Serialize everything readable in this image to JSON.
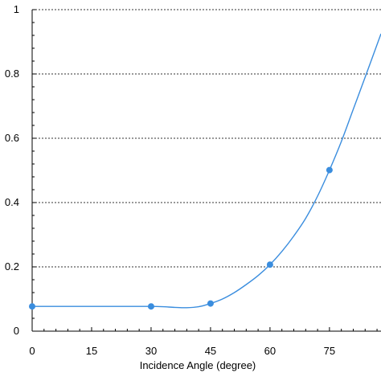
{
  "chart_data": {
    "type": "line",
    "title": "",
    "xlabel": "Incidence Angle (degree)",
    "ylabel": "",
    "xlim": [
      0,
      88
    ],
    "ylim": [
      0,
      1
    ],
    "x_ticks": [
      0,
      15,
      30,
      45,
      60,
      75
    ],
    "y_ticks": [
      0,
      0.2,
      0.4,
      0.6,
      0.8,
      1
    ],
    "x_tick_labels": [
      "0",
      "15",
      "30",
      "45",
      "60",
      "75"
    ],
    "y_tick_labels": [
      "0",
      "0.2",
      "0.4",
      "0.6",
      "0.8",
      "1"
    ],
    "grid": "horizontal dotted",
    "legend": "none",
    "series": [
      {
        "color": "#3a8dde",
        "markers": {
          "x": [
            0,
            30,
            45,
            60,
            75
          ],
          "y": [
            0.077,
            0.077,
            0.086,
            0.207,
            0.501
          ]
        },
        "curve": {
          "x": [
            0,
            5,
            10,
            15,
            20,
            25,
            30,
            33,
            36,
            39,
            42,
            45,
            48,
            51,
            54,
            57,
            60,
            63,
            66,
            69,
            72,
            75,
            78,
            81,
            84,
            88
          ],
          "y": [
            0.077,
            0.077,
            0.077,
            0.077,
            0.077,
            0.077,
            0.077,
            0.076,
            0.074,
            0.073,
            0.076,
            0.086,
            0.1,
            0.12,
            0.145,
            0.173,
            0.207,
            0.248,
            0.296,
            0.351,
            0.42,
            0.501,
            0.59,
            0.69,
            0.79,
            0.925
          ]
        }
      }
    ]
  }
}
